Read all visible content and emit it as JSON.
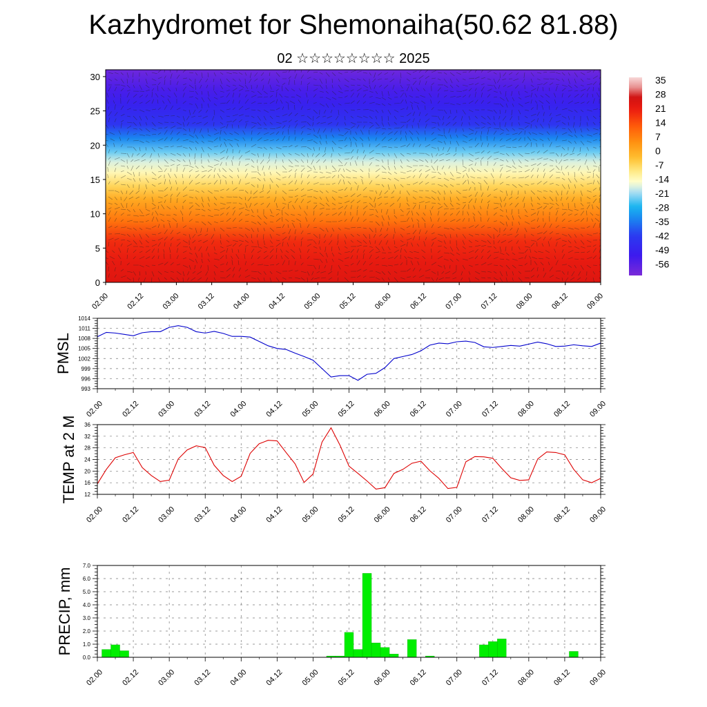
{
  "header": {
    "title": "Kazhydromet for Shemonaiha(50.62 81.88)",
    "subtitle": "02 ☆☆☆☆☆☆☆☆ 2025"
  },
  "time_ticks": [
    "02.00",
    "02.12",
    "03.00",
    "03.12",
    "04.00",
    "04.12",
    "05.00",
    "05.12",
    "06.00",
    "06.12",
    "07.00",
    "07.12",
    "08.00",
    "08.12",
    "09.00"
  ],
  "chart_data": [
    {
      "type": "heatmap",
      "name": "cross-section",
      "ylim": [
        0,
        31
      ],
      "yticks": [
        0,
        5,
        10,
        15,
        20,
        25,
        30
      ],
      "colorbar": {
        "labels": [
          "35",
          "28",
          "21",
          "14",
          "7",
          "0",
          "-7",
          "-14",
          "-21",
          "-28",
          "-35",
          "-42",
          "-49",
          "-56"
        ],
        "range": [
          -60,
          38
        ]
      },
      "color_stops": [
        {
          "t": -60,
          "color": "#7a2ad8"
        },
        {
          "t": -50,
          "color": "#3c1aee"
        },
        {
          "t": -40,
          "color": "#2a3cf0"
        },
        {
          "t": -32,
          "color": "#1a86f0"
        },
        {
          "t": -26,
          "color": "#18b4f0"
        },
        {
          "t": -19,
          "color": "#a8dcf4"
        },
        {
          "t": -14,
          "color": "#ffffd0"
        },
        {
          "t": -8,
          "color": "#ffe880"
        },
        {
          "t": -2,
          "color": "#ffc030"
        },
        {
          "t": 6,
          "color": "#ff9010"
        },
        {
          "t": 14,
          "color": "#ff5a0a"
        },
        {
          "t": 22,
          "color": "#ec1c10"
        },
        {
          "t": 28,
          "color": "#d01010"
        },
        {
          "t": 33,
          "color": "#e89090"
        },
        {
          "t": 38,
          "color": "#f8d8d8"
        }
      ],
      "profile": [
        {
          "level": 0,
          "value": 25
        },
        {
          "level": 3,
          "value": 23
        },
        {
          "level": 6,
          "value": 20
        },
        {
          "level": 9,
          "value": 10
        },
        {
          "level": 12,
          "value": 2
        },
        {
          "level": 14,
          "value": -5
        },
        {
          "level": 16,
          "value": -12
        },
        {
          "level": 17.5,
          "value": -16
        },
        {
          "level": 19,
          "value": -22
        },
        {
          "level": 21,
          "value": -32
        },
        {
          "level": 23,
          "value": -42
        },
        {
          "level": 26,
          "value": -48
        },
        {
          "level": 28,
          "value": -52
        },
        {
          "level": 31,
          "value": -58
        }
      ]
    },
    {
      "type": "line",
      "name": "pmsl",
      "ylabel": "PMSL",
      "ylim": [
        993,
        1014
      ],
      "yticks": [
        993,
        996,
        999,
        1002,
        1005,
        1008,
        1011,
        1014
      ],
      "x_start": 0,
      "x_step": 0.125,
      "series": [
        {
          "color": "#0000cc",
          "values": [
            1008.5,
            1009.8,
            1009.6,
            1009.2,
            1008.8,
            1009.7,
            1010.0,
            1010.0,
            1011.3,
            1011.8,
            1011.3,
            1010.0,
            1009.6,
            1010.1,
            1009.5,
            1008.6,
            1008.6,
            1008.4,
            1007.1,
            1005.8,
            1005.0,
            1004.7,
            1003.6,
            1002.6,
            1001.5,
            999.0,
            996.5,
            996.9,
            996.9,
            995.5,
            997.3,
            997.6,
            999.3,
            1002.0,
            1002.6,
            1003.2,
            1004.3,
            1006.0,
            1006.6,
            1006.4,
            1007.0,
            1007.2,
            1006.8,
            1005.5,
            1005.3,
            1005.6,
            1005.9,
            1005.7,
            1006.3,
            1006.9,
            1006.4,
            1005.6,
            1005.7,
            1006.1,
            1005.8,
            1005.6,
            1006.6
          ]
        }
      ]
    },
    {
      "type": "line",
      "name": "temp",
      "ylabel": "TEMP at 2 M",
      "ylim": [
        12,
        36
      ],
      "yticks": [
        12,
        16,
        20,
        24,
        28,
        32,
        36
      ],
      "x_start": 0,
      "x_step": 0.125,
      "series": [
        {
          "color": "#dd0000",
          "values": [
            15.6,
            20.6,
            24.6,
            25.6,
            26.4,
            21.2,
            18.5,
            16.4,
            16.9,
            24.2,
            27.3,
            28.7,
            28.1,
            22.0,
            18.5,
            16.4,
            18.2,
            26.1,
            29.4,
            30.6,
            30.4,
            26.4,
            22.5,
            16.1,
            19.0,
            30.0,
            34.9,
            28.9,
            21.7,
            19.2,
            16.6,
            13.8,
            14.3,
            19.2,
            20.6,
            22.7,
            23.4,
            20.1,
            17.5,
            14.0,
            14.4,
            23.2,
            25.0,
            24.9,
            24.4,
            20.9,
            17.7,
            16.8,
            17.0,
            24.2,
            26.6,
            26.4,
            25.6,
            20.6,
            17.0,
            16.0,
            17.5
          ]
        }
      ]
    },
    {
      "type": "bar",
      "name": "precip",
      "ylabel": "PRECIP, mm",
      "ylim": [
        0,
        7
      ],
      "yticks": [
        "0.0",
        "1.0",
        "2.0",
        "3.0",
        "4.0",
        "5.0",
        "6.0",
        "7.0"
      ],
      "bar_color": "#00ee00",
      "x_start": 0.125,
      "x_step": 0.125,
      "values": [
        0.6,
        0.95,
        0.5,
        0,
        0,
        0,
        0,
        0,
        0,
        0,
        0,
        0,
        0,
        0,
        0,
        0,
        0,
        0,
        0,
        0,
        0,
        0,
        0,
        0,
        0,
        0.1,
        0.1,
        1.9,
        0.6,
        6.4,
        1.1,
        0.75,
        0.25,
        0,
        1.35,
        0,
        0.1,
        0,
        0,
        0,
        0,
        0,
        0.95,
        1.2,
        1.4,
        0,
        0,
        0,
        0,
        0,
        0,
        0,
        0.45,
        0,
        0,
        0
      ]
    }
  ]
}
